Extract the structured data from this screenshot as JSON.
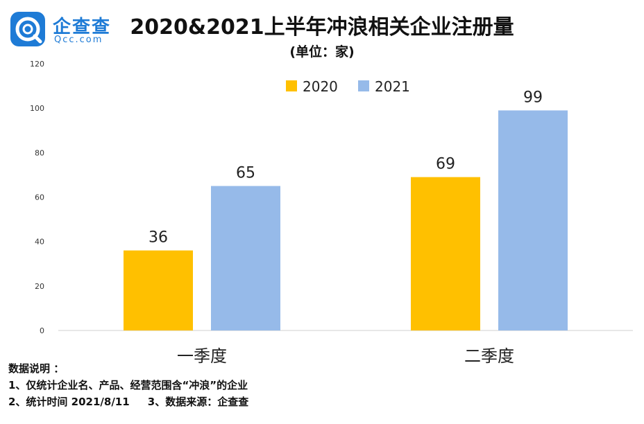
{
  "logo": {
    "name_cn": "企查查",
    "name_en": "Qcc.com"
  },
  "chart_data": {
    "type": "bar",
    "title": "2020&2021上半年冲浪相关企业注册量",
    "subtitle": "(单位：家)",
    "categories": [
      "一季度",
      "二季度"
    ],
    "series": [
      {
        "name": "2020",
        "values": [
          36,
          69
        ],
        "color": "#ffc000"
      },
      {
        "name": "2021",
        "values": [
          65,
          99
        ],
        "color": "#96bae9"
      }
    ],
    "ylim": [
      0,
      120
    ],
    "yticks": [
      0,
      20,
      40,
      60,
      80,
      100,
      120
    ],
    "legend": "top-center",
    "grid": false,
    "xlabel": "",
    "ylabel": ""
  },
  "notes": {
    "heading": "数据说明 ：",
    "line1": "1、仅统计企业名、产品、经营范围含“冲浪”的企业",
    "line2": "2、统计时间 2021/8/11     3、数据来源：企查查"
  }
}
